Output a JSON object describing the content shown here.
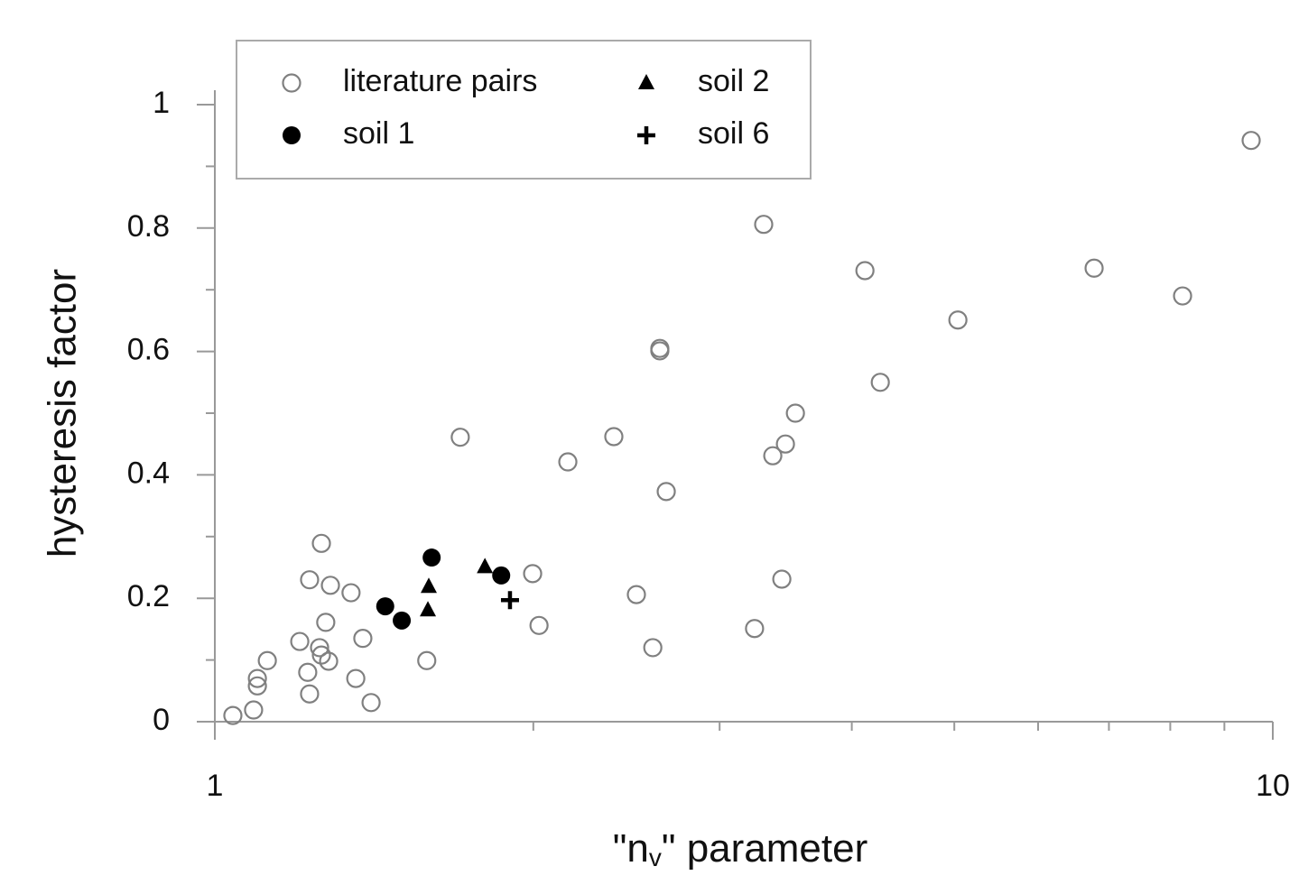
{
  "chart_data": {
    "type": "scatter",
    "xlabel": [
      "\"n",
      "v",
      "\" parameter"
    ],
    "ylabel": "hysteresis factor",
    "xscale": "log",
    "xlim": [
      1,
      10
    ],
    "xticks": [
      1,
      10
    ],
    "xminor_ticks": [
      2,
      3,
      4,
      5,
      6,
      7,
      8,
      9
    ],
    "ylim": [
      0,
      1
    ],
    "yticks": [
      0,
      0.2,
      0.4,
      0.6,
      0.8,
      1
    ],
    "yminor_ticks": [
      0.1,
      0.3,
      0.5,
      0.7,
      0.9
    ],
    "legend": "upper left",
    "series": [
      {
        "name": "literature pairs",
        "marker": "circle-open",
        "color": "#808080",
        "x": [
          1.04,
          1.088,
          1.097,
          1.097,
          1.121,
          1.203,
          1.229,
          1.224,
          1.229,
          1.261,
          1.256,
          1.261,
          1.281,
          1.273,
          1.286,
          1.345,
          1.359,
          1.38,
          1.405,
          1.586,
          1.706,
          1.997,
          2.025,
          2.156,
          2.383,
          2.503,
          2.594,
          2.634,
          2.634,
          2.671,
          3.237,
          3.302,
          3.368,
          3.462,
          3.435,
          3.538,
          4.116,
          4.256,
          5.039,
          6.778,
          8.217,
          9.54
        ],
        "values": [
          0.01,
          0.019,
          0.07,
          0.058,
          0.099,
          0.13,
          0.23,
          0.08,
          0.045,
          0.289,
          0.12,
          0.108,
          0.098,
          0.161,
          0.221,
          0.209,
          0.07,
          0.135,
          0.031,
          0.099,
          0.461,
          0.24,
          0.156,
          0.421,
          0.462,
          0.206,
          0.12,
          0.605,
          0.601,
          0.373,
          0.151,
          0.806,
          0.431,
          0.45,
          0.231,
          0.5,
          0.731,
          0.55,
          0.651,
          0.735,
          0.69,
          0.942
        ]
      },
      {
        "name": "soil 1",
        "marker": "circle",
        "color": "#000000",
        "x": [
          1.449,
          1.502,
          1.603,
          1.865
        ],
        "values": [
          0.187,
          0.164,
          0.266,
          0.237
        ]
      },
      {
        "name": "soil 2",
        "marker": "triangle",
        "color": "#000000",
        "x": [
          1.593,
          1.59,
          1.8
        ],
        "values": [
          0.219,
          0.181,
          0.251
        ]
      },
      {
        "name": "soil 6",
        "marker": "plus",
        "color": "#000000",
        "x": [
          1.901
        ],
        "values": [
          0.197
        ]
      }
    ]
  }
}
